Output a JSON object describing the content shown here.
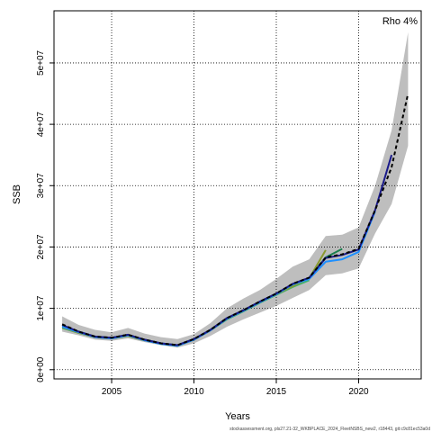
{
  "chart_data": {
    "type": "line",
    "xlabel": "Years",
    "ylabel": "SSB",
    "annotation": "Rho 4%",
    "footer": "stockassessment.org, pls27.21-32_WKBPLACE_2024_FleetNSBS_new2, r18443, git:c9c81ec53a0d",
    "xlim": [
      2001.5,
      2023.8
    ],
    "ylim": [
      -1500000,
      58500000
    ],
    "x_ticks": [
      2005,
      2010,
      2015,
      2020
    ],
    "y_ticks": [
      0,
      10000000,
      20000000,
      30000000,
      40000000,
      50000000
    ],
    "y_tick_labels": [
      "0e+00",
      "1e+07",
      "2e+07",
      "3e+07",
      "4e+07",
      "5e+07"
    ],
    "grid": true,
    "confidence_band": {
      "color": "#bebebe",
      "x": [
        2002,
        2003,
        2004,
        2005,
        2006,
        2007,
        2008,
        2009,
        2010,
        2011,
        2012,
        2013,
        2014,
        2015,
        2016,
        2017,
        2018,
        2019,
        2020,
        2021,
        2022,
        2023
      ],
      "lower": [
        6200000,
        5600000,
        4900000,
        4700000,
        5100000,
        4500000,
        4000000,
        3600000,
        4300000,
        5500000,
        7000000,
        8200000,
        9300000,
        10400000,
        11700000,
        13000000,
        15400000,
        15700000,
        16500000,
        22200000,
        27000000,
        36500000
      ],
      "upper": [
        8700000,
        7300000,
        6500000,
        6100000,
        6800000,
        5900000,
        5300000,
        5000000,
        5800000,
        7600000,
        10000000,
        11600000,
        13000000,
        14800000,
        16800000,
        18000000,
        21800000,
        22000000,
        23200000,
        30000000,
        39000000,
        55000000
      ]
    },
    "series": [
      {
        "color": "#000000",
        "dashed": true,
        "x": [
          2002,
          2003,
          2004,
          2005,
          2006,
          2007,
          2008,
          2009,
          2010,
          2011,
          2012,
          2013,
          2014,
          2015,
          2016,
          2017,
          2018,
          2019,
          2020,
          2021,
          2022,
          2023
        ],
        "y": [
          7400000,
          6200000,
          5400000,
          5200000,
          5700000,
          4900000,
          4300000,
          4000000,
          5000000,
          6500000,
          8400000,
          9700000,
          11100000,
          12400000,
          14000000,
          15000000,
          18300000,
          18800000,
          19700000,
          26000000,
          33000000,
          45000000
        ]
      },
      {
        "color": "#1a1a8a",
        "dashed": false,
        "x": [
          2002,
          2003,
          2004,
          2005,
          2006,
          2007,
          2008,
          2009,
          2010,
          2011,
          2012,
          2013,
          2014,
          2015,
          2016,
          2017,
          2018,
          2019,
          2020,
          2021,
          2022
        ],
        "y": [
          7300000,
          6200000,
          5400000,
          5200000,
          5700000,
          4900000,
          4300000,
          4000000,
          5000000,
          6500000,
          8400000,
          9700000,
          11100000,
          12400000,
          14000000,
          15000000,
          18200000,
          18700000,
          19600000,
          26000000,
          35000000
        ]
      },
      {
        "color": "#1e90ff",
        "dashed": false,
        "x": [
          2002,
          2003,
          2004,
          2005,
          2006,
          2007,
          2008,
          2009,
          2010,
          2011,
          2012,
          2013,
          2014,
          2015,
          2016,
          2017,
          2018,
          2019,
          2020,
          2021
        ],
        "y": [
          7000000,
          6100000,
          5300000,
          5100000,
          5600000,
          4800000,
          4200000,
          3900000,
          4900000,
          6400000,
          8300000,
          9600000,
          11000000,
          12300000,
          13900000,
          14800000,
          17600000,
          18000000,
          19200000,
          25800000
        ]
      },
      {
        "color": "#1b7f4e",
        "dashed": false,
        "x": [
          2002,
          2003,
          2004,
          2005,
          2006,
          2007,
          2008,
          2009,
          2010,
          2011,
          2012,
          2013,
          2014,
          2015,
          2016,
          2017,
          2018,
          2019
        ],
        "y": [
          7100000,
          6200000,
          5400000,
          5200000,
          5700000,
          4900000,
          4300000,
          4000000,
          5000000,
          6500000,
          8400000,
          9700000,
          11100000,
          12400000,
          13900000,
          15000000,
          18300000,
          19700000
        ]
      },
      {
        "color": "#8a9a2e",
        "dashed": false,
        "x": [
          2002,
          2003,
          2004,
          2005,
          2006,
          2007,
          2008,
          2009,
          2010,
          2011,
          2012,
          2013,
          2014,
          2015,
          2016,
          2017,
          2018
        ],
        "y": [
          6900000,
          6000000,
          5300000,
          5100000,
          5500000,
          4800000,
          4200000,
          3900000,
          4900000,
          6400000,
          8300000,
          9600000,
          11000000,
          12300000,
          13600000,
          14900000,
          19500000
        ]
      },
      {
        "color": "#3cb371",
        "dashed": false,
        "x": [
          2002,
          2003,
          2004,
          2005,
          2006,
          2007,
          2008,
          2009,
          2010,
          2011,
          2012,
          2013,
          2014,
          2015,
          2016,
          2017
        ],
        "y": [
          6800000,
          6000000,
          5300000,
          5100000,
          5500000,
          4800000,
          4200000,
          3900000,
          4900000,
          6400000,
          8200000,
          9500000,
          10900000,
          12200000,
          13500000,
          14600000
        ]
      }
    ]
  }
}
